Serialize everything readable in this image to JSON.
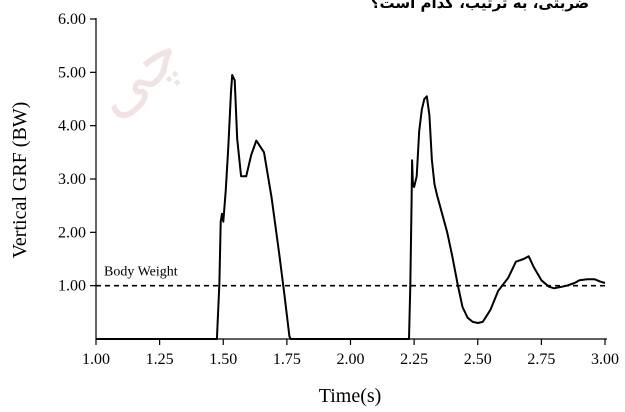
{
  "header_text": "ضربتی، به ترتیب، کدام است؟",
  "watermark_text": "چی",
  "colors": {
    "line": "#000000",
    "watermark": "#f1e3e3",
    "background": "#ffffff"
  },
  "chart_data": {
    "type": "line",
    "xlabel": "Time(s)",
    "ylabel": "Vertical GRF (BW)",
    "xlim": [
      1.0,
      3.0
    ],
    "ylim": [
      0.0,
      6.0
    ],
    "xticks": [
      "1.00",
      "1.25",
      "1.50",
      "1.75",
      "2.00",
      "2.25",
      "2.50",
      "2.75",
      "3.00"
    ],
    "yticks": [
      "1.00",
      "2.00",
      "3.00",
      "4.00",
      "5.00",
      "6.00"
    ],
    "grid": false,
    "reference_line": {
      "label": "Body Weight",
      "y": 1.0,
      "style": "dashed"
    },
    "series": [
      {
        "x": [
          1.0,
          1.475,
          1.485,
          1.49,
          1.495,
          1.5,
          1.51,
          1.52,
          1.53,
          1.535,
          1.545,
          1.555,
          1.57,
          1.59,
          1.61,
          1.63,
          1.66,
          1.69,
          1.72,
          1.74,
          1.76,
          1.765,
          1.77,
          2.23,
          2.235,
          2.24,
          2.242,
          2.245,
          2.25,
          2.26,
          2.27,
          2.28,
          2.29,
          2.3,
          2.31,
          2.32,
          2.33,
          2.34,
          2.36,
          2.38,
          2.4,
          2.42,
          2.44,
          2.46,
          2.48,
          2.5,
          2.52,
          2.55,
          2.58,
          2.62,
          2.65,
          2.68,
          2.7,
          2.72,
          2.75,
          2.78,
          2.8,
          2.82,
          2.85,
          2.88,
          2.9,
          2.93,
          2.96,
          2.98,
          3.0
        ],
        "y": [
          0.0,
          0.0,
          1.05,
          2.2,
          2.35,
          2.2,
          2.8,
          3.6,
          4.6,
          4.95,
          4.85,
          3.75,
          3.05,
          3.05,
          3.45,
          3.72,
          3.5,
          2.65,
          1.6,
          0.85,
          0.05,
          0.0,
          0.0,
          0.0,
          1.0,
          2.6,
          3.35,
          2.9,
          2.85,
          3.05,
          3.9,
          4.3,
          4.5,
          4.55,
          4.2,
          3.35,
          2.9,
          2.7,
          2.35,
          2.0,
          1.55,
          1.05,
          0.6,
          0.4,
          0.32,
          0.3,
          0.32,
          0.55,
          0.9,
          1.15,
          1.45,
          1.5,
          1.55,
          1.35,
          1.1,
          0.98,
          0.95,
          0.97,
          1.0,
          1.05,
          1.1,
          1.12,
          1.12,
          1.08,
          1.05
        ]
      }
    ]
  }
}
